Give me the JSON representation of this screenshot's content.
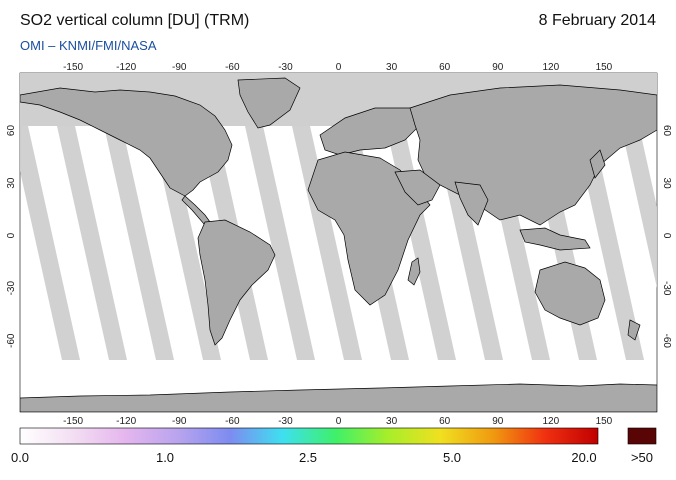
{
  "header": {
    "title": "SO2 vertical column [DU] (TRM)",
    "date": "8 February 2014",
    "credit": "OMI  –  KNMI/FMI/NASA"
  },
  "map": {
    "lon_ticks": [
      "-150",
      "-120",
      "-90",
      "-60",
      "-30",
      "0",
      "30",
      "60",
      "90",
      "120",
      "150"
    ],
    "lat_ticks": [
      "60",
      "30",
      "0",
      "-30",
      "-60"
    ],
    "ocean_color": "#ffffff",
    "land_color": "#a9a9a9",
    "no_data_color": "#cfcfcf",
    "coast_color": "#000000"
  },
  "colorbar": {
    "labels": [
      "0.0",
      "1.0",
      "2.5",
      "5.0",
      "20.0"
    ],
    "overflow_label": ">50",
    "overflow_color": "#5a0505",
    "gradient_stops": [
      "#ffffff",
      "#f3dff3",
      "#e5b6ee",
      "#b9a4ee",
      "#7d8cf0",
      "#3ee0f0",
      "#3ef06a",
      "#a7ee2a",
      "#f0e020",
      "#f09a10",
      "#f03010",
      "#c00000"
    ]
  }
}
